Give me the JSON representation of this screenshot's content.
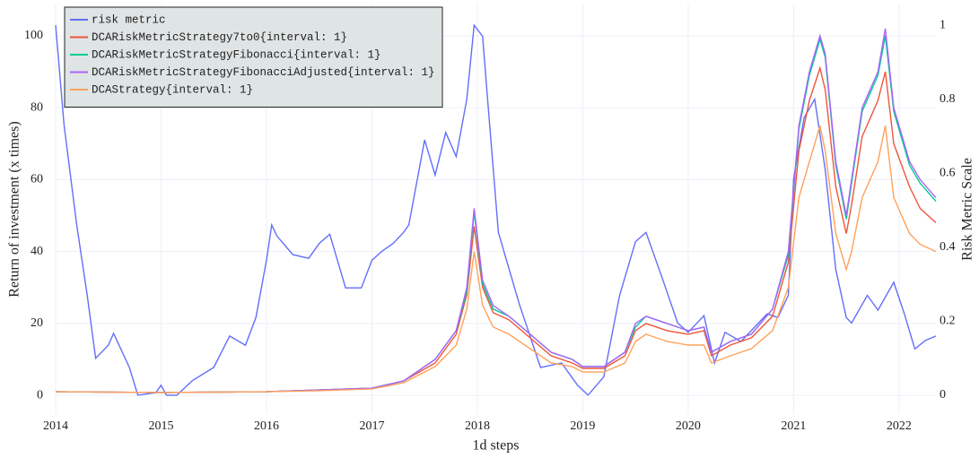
{
  "chart_data": {
    "type": "line",
    "xlabel": "1d steps",
    "ylabel": "Return of investment (x times)",
    "y2label": "Risk Metric Scale",
    "xlim": [
      2014,
      2022.35
    ],
    "ylim": [
      -5.2,
      108.7
    ],
    "y2lim": [
      -0.051,
      1.056
    ],
    "xticks": [
      2014,
      2015,
      2016,
      2017,
      2018,
      2019,
      2020,
      2021,
      2022
    ],
    "yticks": [
      0,
      20,
      40,
      60,
      80,
      100
    ],
    "y2ticks": [
      0,
      0.2,
      0.4,
      0.6,
      0.8,
      1
    ],
    "grid": true,
    "legend": "top-left",
    "series": [
      {
        "name": "risk metric",
        "color": "#636efa",
        "axis": "y2",
        "x": [
          2014.0,
          2014.08,
          2014.2,
          2014.3,
          2014.38,
          2014.5,
          2014.55,
          2014.7,
          2014.78,
          2014.95,
          2015.0,
          2015.05,
          2015.15,
          2015.3,
          2015.5,
          2015.65,
          2015.8,
          2015.9,
          2016.0,
          2016.05,
          2016.1,
          2016.25,
          2016.4,
          2016.5,
          2016.6,
          2016.75,
          2016.9,
          2017.0,
          2017.1,
          2017.2,
          2017.3,
          2017.35,
          2017.5,
          2017.6,
          2017.7,
          2017.8,
          2017.9,
          2017.97,
          2018.05,
          2018.1,
          2018.2,
          2018.4,
          2018.6,
          2018.8,
          2018.95,
          2019.05,
          2019.2,
          2019.35,
          2019.5,
          2019.6,
          2019.75,
          2019.9,
          2020.0,
          2020.15,
          2020.25,
          2020.35,
          2020.5,
          2020.75,
          2020.85,
          2020.95,
          2021.0,
          2021.1,
          2021.2,
          2021.3,
          2021.4,
          2021.5,
          2021.55,
          2021.7,
          2021.8,
          2021.95,
          2022.05,
          2022.15,
          2022.25,
          2022.35
        ],
        "values": [
          1.0,
          0.73,
          0.46,
          0.27,
          0.1,
          0.135,
          0.167,
          0.075,
          0.0,
          0.007,
          0.027,
          0.0,
          0.0,
          0.04,
          0.075,
          0.16,
          0.135,
          0.21,
          0.365,
          0.46,
          0.43,
          0.38,
          0.37,
          0.41,
          0.435,
          0.29,
          0.29,
          0.365,
          0.39,
          0.41,
          0.44,
          0.46,
          0.69,
          0.595,
          0.71,
          0.645,
          0.8,
          1.0,
          0.97,
          0.79,
          0.44,
          0.245,
          0.075,
          0.087,
          0.027,
          0.0,
          0.05,
          0.27,
          0.415,
          0.44,
          0.32,
          0.195,
          0.17,
          0.215,
          0.087,
          0.17,
          0.145,
          0.22,
          0.21,
          0.27,
          0.585,
          0.75,
          0.8,
          0.61,
          0.34,
          0.21,
          0.195,
          0.27,
          0.23,
          0.305,
          0.22,
          0.125,
          0.148,
          0.16
        ]
      },
      {
        "name": "DCARiskMetricStrategy7to0{interval: 1}",
        "color": "#ef553b",
        "x": [
          2014,
          2015,
          2016,
          2016.5,
          2017,
          2017.3,
          2017.6,
          2017.8,
          2017.9,
          2017.97,
          2018.05,
          2018.15,
          2018.3,
          2018.5,
          2018.7,
          2018.9,
          2019.0,
          2019.2,
          2019.4,
          2019.5,
          2019.6,
          2019.8,
          2020.0,
          2020.15,
          2020.22,
          2020.4,
          2020.6,
          2020.8,
          2020.95,
          2021.05,
          2021.15,
          2021.25,
          2021.3,
          2021.4,
          2021.5,
          2021.55,
          2021.65,
          2021.8,
          2021.87,
          2021.95,
          2022.1,
          2022.2,
          2022.35
        ],
        "values": [
          1,
          0.8,
          1,
          1.5,
          2,
          4,
          9,
          17,
          28,
          47,
          30,
          23,
          21,
          16,
          11,
          9,
          7.5,
          7.5,
          11,
          18,
          20,
          18,
          17,
          18,
          11,
          14,
          16,
          22,
          37,
          68,
          82,
          91,
          85,
          58,
          45,
          53,
          72,
          82,
          90,
          70,
          58,
          52,
          48
        ]
      },
      {
        "name": "DCARiskMetricStrategyFibonacci{interval: 1}",
        "color": "#00cc96",
        "x": [
          2014,
          2015,
          2016,
          2016.5,
          2017,
          2017.3,
          2017.6,
          2017.8,
          2017.9,
          2017.97,
          2018.05,
          2018.15,
          2018.3,
          2018.5,
          2018.7,
          2018.9,
          2019.0,
          2019.2,
          2019.4,
          2019.5,
          2019.6,
          2019.8,
          2020.0,
          2020.15,
          2020.22,
          2020.4,
          2020.6,
          2020.8,
          2020.95,
          2021.05,
          2021.15,
          2021.25,
          2021.3,
          2021.4,
          2021.5,
          2021.55,
          2021.65,
          2021.8,
          2021.87,
          2021.95,
          2022.1,
          2022.2,
          2022.35
        ],
        "values": [
          1,
          0.8,
          1,
          1.5,
          2,
          4,
          10,
          18,
          29,
          51,
          31,
          24,
          22,
          17,
          12,
          10,
          8,
          8,
          12,
          19,
          22,
          20,
          18,
          19,
          12,
          15,
          17,
          24,
          39,
          74,
          89,
          99,
          94,
          64,
          49,
          59,
          79,
          89,
          100,
          79,
          64,
          59,
          54
        ]
      },
      {
        "name": "DCARiskMetricStrategyFibonacciAdjusted{interval: 1}",
        "color": "#ab63fa",
        "x": [
          2014,
          2015,
          2016,
          2016.5,
          2017,
          2017.3,
          2017.6,
          2017.8,
          2017.9,
          2017.97,
          2018.05,
          2018.15,
          2018.3,
          2018.5,
          2018.7,
          2018.9,
          2019.0,
          2019.2,
          2019.4,
          2019.5,
          2019.6,
          2019.8,
          2020.0,
          2020.15,
          2020.22,
          2020.4,
          2020.6,
          2020.8,
          2020.95,
          2021.05,
          2021.15,
          2021.25,
          2021.3,
          2021.4,
          2021.5,
          2021.55,
          2021.65,
          2021.8,
          2021.87,
          2021.95,
          2022.1,
          2022.2,
          2022.35
        ],
        "values": [
          1,
          0.8,
          1,
          1.5,
          2,
          4,
          10,
          18,
          30,
          52,
          32,
          25,
          22,
          17,
          12,
          10,
          8,
          8,
          12,
          20,
          22,
          20,
          18,
          19,
          12,
          15,
          17,
          24,
          40,
          75,
          90,
          100,
          95,
          65,
          50,
          60,
          80,
          90,
          102,
          80,
          65,
          60,
          55
        ]
      },
      {
        "name": "DCAStrategy{interval: 1}",
        "color": "#ffa15a",
        "x": [
          2014,
          2015,
          2016,
          2016.5,
          2017,
          2017.3,
          2017.6,
          2017.8,
          2017.9,
          2017.97,
          2018.05,
          2018.15,
          2018.3,
          2018.5,
          2018.7,
          2018.9,
          2019.0,
          2019.2,
          2019.4,
          2019.5,
          2019.6,
          2019.8,
          2020.0,
          2020.15,
          2020.22,
          2020.4,
          2020.6,
          2020.8,
          2020.95,
          2021.05,
          2021.15,
          2021.25,
          2021.3,
          2021.4,
          2021.5,
          2021.55,
          2021.65,
          2021.8,
          2021.87,
          2021.95,
          2022.1,
          2022.2,
          2022.35
        ],
        "values": [
          1,
          0.8,
          1,
          1.3,
          1.8,
          3.5,
          8,
          14,
          24,
          40,
          25,
          19,
          17,
          13,
          9,
          8,
          6.5,
          6.5,
          9,
          15,
          17,
          15,
          14,
          14,
          9,
          11,
          13,
          18,
          30,
          55,
          65,
          75,
          68,
          45,
          35,
          40,
          55,
          65,
          75,
          55,
          45,
          42,
          40
        ]
      }
    ]
  }
}
